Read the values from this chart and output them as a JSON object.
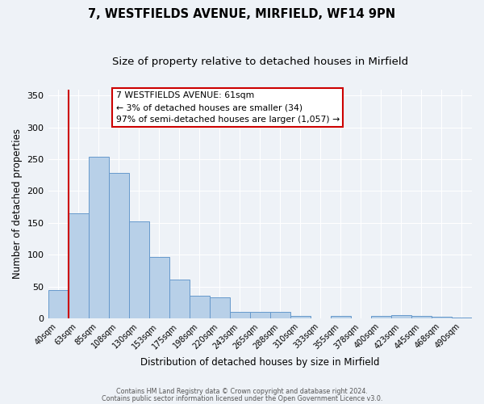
{
  "title": "7, WESTFIELDS AVENUE, MIRFIELD, WF14 9PN",
  "subtitle": "Size of property relative to detached houses in Mirfield",
  "xlabel": "Distribution of detached houses by size in Mirfield",
  "ylabel": "Number of detached properties",
  "categories": [
    "40sqm",
    "63sqm",
    "85sqm",
    "108sqm",
    "130sqm",
    "153sqm",
    "175sqm",
    "198sqm",
    "220sqm",
    "243sqm",
    "265sqm",
    "288sqm",
    "310sqm",
    "333sqm",
    "355sqm",
    "378sqm",
    "400sqm",
    "423sqm",
    "445sqm",
    "468sqm",
    "490sqm"
  ],
  "bar_values": [
    44,
    165,
    254,
    229,
    152,
    96,
    61,
    35,
    33,
    10,
    10,
    10,
    4,
    0,
    4,
    0,
    4,
    5,
    4,
    2,
    1
  ],
  "bar_color": "#b8d0e8",
  "bar_edgecolor": "#6699cc",
  "ylim": [
    0,
    360
  ],
  "yticks": [
    0,
    50,
    100,
    150,
    200,
    250,
    300,
    350
  ],
  "vline_color": "#cc0000",
  "annotation_lines": [
    "7 WESTFIELDS AVENUE: 61sqm",
    "← 3% of detached houses are smaller (34)",
    "97% of semi-detached houses are larger (1,057) →"
  ],
  "footer_line1": "Contains HM Land Registry data © Crown copyright and database right 2024.",
  "footer_line2": "Contains public sector information licensed under the Open Government Licence v3.0.",
  "bg_color": "#eef2f7",
  "grid_color": "#ffffff",
  "title_fontsize": 10.5,
  "subtitle_fontsize": 9.5,
  "bar_width": 1.0
}
